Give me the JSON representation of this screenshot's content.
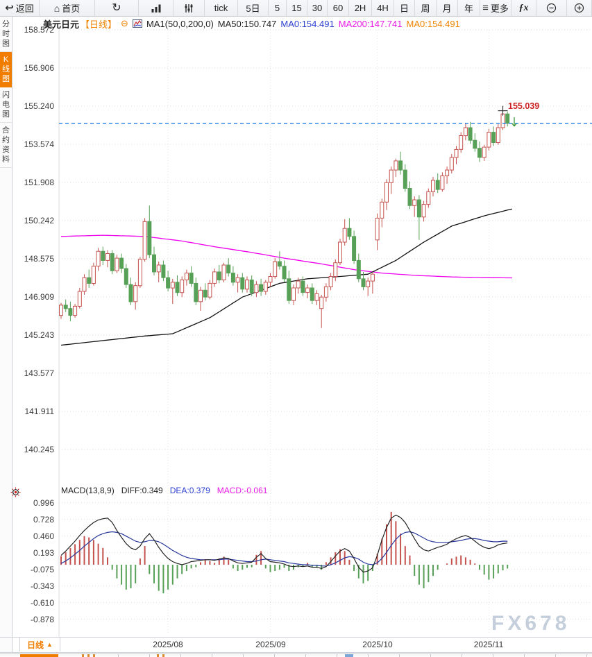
{
  "toolbar": {
    "items": [
      {
        "name": "back",
        "label": "返回",
        "icon": "back-arrow"
      },
      {
        "name": "home",
        "label": "首页",
        "icon": "home"
      },
      {
        "name": "refresh",
        "label": "",
        "icon": "refresh"
      },
      {
        "name": "chart-style",
        "label": "",
        "icon": "bar-chart"
      },
      {
        "name": "indicators",
        "label": "",
        "icon": "sliders"
      },
      {
        "name": "tick",
        "label": "tick",
        "icon": ""
      },
      {
        "name": "5d",
        "label": "5日",
        "icon": ""
      },
      {
        "name": "5m",
        "label": "5",
        "icon": ""
      },
      {
        "name": "15m",
        "label": "15",
        "icon": ""
      },
      {
        "name": "30m",
        "label": "30",
        "icon": ""
      },
      {
        "name": "60m",
        "label": "60",
        "icon": ""
      },
      {
        "name": "2h",
        "label": "2H",
        "icon": ""
      },
      {
        "name": "4h",
        "label": "4H",
        "icon": ""
      },
      {
        "name": "day",
        "label": "日",
        "icon": ""
      },
      {
        "name": "week",
        "label": "周",
        "icon": ""
      },
      {
        "name": "month",
        "label": "月",
        "icon": ""
      },
      {
        "name": "year",
        "label": "年",
        "icon": ""
      },
      {
        "name": "more",
        "label": "更多",
        "icon": "menu"
      },
      {
        "name": "fx",
        "label": "",
        "icon": "fx"
      },
      {
        "name": "zoom-out",
        "label": "",
        "icon": "zoom-out"
      },
      {
        "name": "zoom-in",
        "label": "",
        "icon": "zoom-in"
      }
    ]
  },
  "sidebar": {
    "items": [
      {
        "name": "timeline-chart",
        "label": "分时图",
        "active": false
      },
      {
        "name": "kline-chart",
        "label": "K线图",
        "active": true
      },
      {
        "name": "lightning-chart",
        "label": "闪电图",
        "active": false
      },
      {
        "name": "contract-info",
        "label": "合约资料",
        "active": false
      }
    ]
  },
  "header": {
    "symbol": "美元日元",
    "period_tag": "【日线】",
    "ma_settings": "MA1(50,0,200,0)",
    "ma50": "MA50:150.747",
    "ma0_blue": "MA0:154.491",
    "ma200": "MA200:147.741",
    "ma0_orange": "MA0:154.491"
  },
  "macd_header": {
    "title": "MACD(13,8,9)",
    "diff": "DIFF:0.349",
    "dea": "DEA:0.379",
    "macd": "MACD:-0.061"
  },
  "price_axis": [
    "158.572",
    "156.906",
    "155.240",
    "153.574",
    "151.908",
    "150.242",
    "148.575",
    "146.909",
    "145.243",
    "143.577",
    "141.911",
    "140.245"
  ],
  "macd_axis": [
    "0.996",
    "0.728",
    "0.460",
    "0.193",
    "-0.075",
    "-0.343",
    "-0.610",
    "-0.878"
  ],
  "x_axis": [
    "2025/08",
    "2025/09",
    "2025/10",
    "2025/11"
  ],
  "annotations": {
    "high_label": "155.039",
    "high_price": 155.039,
    "high_index": 95,
    "current_price": 154.491
  },
  "bottom_bar": {
    "period_label": "日线",
    "arrow": "▲"
  },
  "watermark": "FX678",
  "colors": {
    "up": "#c4514d",
    "down": "#57a057",
    "ma50": "#111111",
    "ma200": "#ee00ee",
    "diff": "#222222",
    "dea": "#26369b",
    "current_line": "#1f7fe8",
    "accent_orange": "#f08300",
    "high_label": "#cc2222",
    "grid": "#d8d8d8",
    "axis_text": "#3c3c3c",
    "watermark": "#c5cfdc"
  },
  "chart_data": {
    "type": "candlestick+macd",
    "symbol": "美元日元 (USD/JPY)",
    "interval": "日线 (daily)",
    "price_axis_ticks": [
      158.572,
      156.906,
      155.24,
      153.574,
      151.908,
      150.242,
      148.575,
      146.909,
      145.243,
      143.577,
      141.911,
      140.245
    ],
    "macd_axis_ticks": [
      0.996,
      0.728,
      0.46,
      0.193,
      -0.075,
      -0.343,
      -0.61,
      -0.878
    ],
    "month_boundaries": {
      "2025/08": 23,
      "2025/09": 45,
      "2025/10": 68,
      "2025/11": 92
    },
    "current_price": 154.491,
    "high_marker": {
      "index": 95,
      "price": 155.039
    },
    "ma50_label_value": 150.747,
    "ma200_label_value": 147.741,
    "candles": [
      [
        146.1,
        146.65,
        145.95,
        146.55
      ],
      [
        146.55,
        146.8,
        146.25,
        146.4
      ],
      [
        146.4,
        146.7,
        145.85,
        146.1
      ],
      [
        146.1,
        146.6,
        146.0,
        146.5
      ],
      [
        146.5,
        147.3,
        146.4,
        147.15
      ],
      [
        147.15,
        147.9,
        147.0,
        147.75
      ],
      [
        147.75,
        148.1,
        147.3,
        147.5
      ],
      [
        147.5,
        148.4,
        147.4,
        148.25
      ],
      [
        148.25,
        149.05,
        148.05,
        148.9
      ],
      [
        148.9,
        149.1,
        148.3,
        148.5
      ],
      [
        148.5,
        148.95,
        148.2,
        148.8
      ],
      [
        148.8,
        148.95,
        147.9,
        148.05
      ],
      [
        148.05,
        148.75,
        147.95,
        148.6
      ],
      [
        148.6,
        148.8,
        147.95,
        148.15
      ],
      [
        148.15,
        148.35,
        147.3,
        147.45
      ],
      [
        147.45,
        147.75,
        146.55,
        146.7
      ],
      [
        146.7,
        147.55,
        146.35,
        147.4
      ],
      [
        147.4,
        148.65,
        147.3,
        148.55
      ],
      [
        148.55,
        150.35,
        148.45,
        150.2
      ],
      [
        150.2,
        150.9,
        148.6,
        148.75
      ],
      [
        148.75,
        149.1,
        147.85,
        148.0
      ],
      [
        148.0,
        148.45,
        147.55,
        148.3
      ],
      [
        148.3,
        148.5,
        147.6,
        147.75
      ],
      [
        147.75,
        148.05,
        147.15,
        147.3
      ],
      [
        147.3,
        147.7,
        146.6,
        147.55
      ],
      [
        147.55,
        147.85,
        146.95,
        147.1
      ],
      [
        147.1,
        147.8,
        146.9,
        147.65
      ],
      [
        147.65,
        148.1,
        147.4,
        147.95
      ],
      [
        147.95,
        148.25,
        147.35,
        147.5
      ],
      [
        147.5,
        147.75,
        146.55,
        146.7
      ],
      [
        146.7,
        147.35,
        146.3,
        147.2
      ],
      [
        147.2,
        147.5,
        146.75,
        146.9
      ],
      [
        146.9,
        147.65,
        146.8,
        147.5
      ],
      [
        147.5,
        148.15,
        147.35,
        148.0
      ],
      [
        148.0,
        148.3,
        147.5,
        147.65
      ],
      [
        147.65,
        148.4,
        147.55,
        148.3
      ],
      [
        148.3,
        148.6,
        147.8,
        147.95
      ],
      [
        147.95,
        148.25,
        147.4,
        147.55
      ],
      [
        147.55,
        147.9,
        147.1,
        147.75
      ],
      [
        147.75,
        147.95,
        147.1,
        147.25
      ],
      [
        147.25,
        147.8,
        147.1,
        147.65
      ],
      [
        147.65,
        147.85,
        146.95,
        147.1
      ],
      [
        147.1,
        147.6,
        146.9,
        147.45
      ],
      [
        147.45,
        147.7,
        146.95,
        147.15
      ],
      [
        147.15,
        147.65,
        147.0,
        147.55
      ],
      [
        147.55,
        147.95,
        147.35,
        147.8
      ],
      [
        147.8,
        148.6,
        147.7,
        148.45
      ],
      [
        148.45,
        148.9,
        148.1,
        148.25
      ],
      [
        148.25,
        148.5,
        147.55,
        147.7
      ],
      [
        147.7,
        148.05,
        146.6,
        146.75
      ],
      [
        146.75,
        147.45,
        146.55,
        147.3
      ],
      [
        147.3,
        147.75,
        147.05,
        147.6
      ],
      [
        147.6,
        147.8,
        146.95,
        147.1
      ],
      [
        147.1,
        147.45,
        146.85,
        147.3
      ],
      [
        147.3,
        147.5,
        146.6,
        146.75
      ],
      [
        146.75,
        147.2,
        146.55,
        147.05
      ],
      [
        146.4,
        147.0,
        145.55,
        146.9
      ],
      [
        146.9,
        147.5,
        146.7,
        147.35
      ],
      [
        147.35,
        147.95,
        147.2,
        147.8
      ],
      [
        147.8,
        148.55,
        147.6,
        148.4
      ],
      [
        148.4,
        149.45,
        148.3,
        149.3
      ],
      [
        149.3,
        150.3,
        149.15,
        149.9
      ],
      [
        149.9,
        150.35,
        149.4,
        149.55
      ],
      [
        149.55,
        149.8,
        148.35,
        148.5
      ],
      [
        148.5,
        148.8,
        147.55,
        147.7
      ],
      [
        147.7,
        148.0,
        147.2,
        147.35
      ],
      [
        147.35,
        147.75,
        146.95,
        147.6
      ],
      [
        147.6,
        147.95,
        147.05,
        147.9
      ],
      [
        149.4,
        150.55,
        148.95,
        150.35
      ],
      [
        150.35,
        151.2,
        149.95,
        151.05
      ],
      [
        151.05,
        152.05,
        150.7,
        151.9
      ],
      [
        151.9,
        152.6,
        151.4,
        152.45
      ],
      [
        152.45,
        152.95,
        152.15,
        152.85
      ],
      [
        152.85,
        153.25,
        152.25,
        152.45
      ],
      [
        152.45,
        152.7,
        151.5,
        151.65
      ],
      [
        151.65,
        151.95,
        150.75,
        150.9
      ],
      [
        150.9,
        151.3,
        150.4,
        151.15
      ],
      [
        151.15,
        151.35,
        149.4,
        150.4
      ],
      [
        150.4,
        151.1,
        150.2,
        150.95
      ],
      [
        150.95,
        151.65,
        150.8,
        151.5
      ],
      [
        151.5,
        152.15,
        151.3,
        152.0
      ],
      [
        152.0,
        152.3,
        151.45,
        151.6
      ],
      [
        151.6,
        152.35,
        151.5,
        152.2
      ],
      [
        152.2,
        152.6,
        151.85,
        152.45
      ],
      [
        152.45,
        153.15,
        152.3,
        153.0
      ],
      [
        153.0,
        153.5,
        152.7,
        153.35
      ],
      [
        153.35,
        154.1,
        153.2,
        153.95
      ],
      [
        153.95,
        154.5,
        153.75,
        154.3
      ],
      [
        154.3,
        154.55,
        153.6,
        153.75
      ],
      [
        153.75,
        154.05,
        153.25,
        153.4
      ],
      [
        153.4,
        153.7,
        152.8,
        153.0
      ],
      [
        153.0,
        153.55,
        152.85,
        153.45
      ],
      [
        153.45,
        154.25,
        153.3,
        154.1
      ],
      [
        154.1,
        154.35,
        153.5,
        153.65
      ],
      [
        153.65,
        154.45,
        153.55,
        154.3
      ],
      [
        154.3,
        155.039,
        154.2,
        154.9
      ],
      [
        154.9,
        155.0,
        154.35,
        154.491
      ]
    ],
    "ma50_keypoints": [
      [
        0,
        144.8
      ],
      [
        9,
        145.0
      ],
      [
        18,
        145.2
      ],
      [
        24,
        145.3
      ],
      [
        32,
        146.0
      ],
      [
        39,
        146.9
      ],
      [
        47,
        147.5
      ],
      [
        53,
        147.7
      ],
      [
        60,
        147.8
      ],
      [
        66,
        147.9
      ],
      [
        72,
        148.5
      ],
      [
        78,
        149.3
      ],
      [
        84,
        150.0
      ],
      [
        91,
        150.45
      ],
      [
        97,
        150.75
      ]
    ],
    "ma200_keypoints": [
      [
        0,
        149.55
      ],
      [
        9,
        149.6
      ],
      [
        18,
        149.55
      ],
      [
        26,
        149.35
      ],
      [
        33,
        149.1
      ],
      [
        41,
        148.85
      ],
      [
        48,
        148.6
      ],
      [
        56,
        148.35
      ],
      [
        63,
        148.1
      ],
      [
        69,
        147.95
      ],
      [
        76,
        147.85
      ],
      [
        84,
        147.78
      ],
      [
        91,
        147.75
      ],
      [
        97,
        147.74
      ]
    ],
    "macd": {
      "params": "(13,8,9)",
      "last": {
        "diff": 0.349,
        "dea": 0.379,
        "macd": -0.061
      },
      "hist": [
        0.14,
        0.2,
        0.27,
        0.33,
        0.4,
        0.46,
        0.44,
        0.4,
        0.34,
        0.27,
        0.12,
        -0.08,
        -0.22,
        -0.32,
        -0.4,
        -0.38,
        -0.3,
        0.1,
        0.3,
        -0.15,
        -0.3,
        -0.42,
        -0.46,
        -0.4,
        -0.32,
        -0.22,
        -0.15,
        -0.1,
        -0.06,
        -0.04,
        0.04,
        0.08,
        0.06,
        0.03,
        0.1,
        0.13,
        0.08,
        -0.06,
        -0.1,
        -0.08,
        -0.05,
        -0.04,
        0.16,
        0.22,
        -0.06,
        -0.12,
        -0.1,
        -0.08,
        -0.05,
        -0.1,
        -0.08,
        -0.04,
        -0.03,
        0.03,
        -0.04,
        -0.05,
        -0.08,
        0.04,
        0.12,
        0.2,
        0.25,
        0.22,
        0.08,
        -0.1,
        -0.22,
        -0.3,
        -0.26,
        -0.1,
        0.18,
        0.42,
        0.65,
        0.85,
        0.7,
        0.5,
        0.3,
        0.15,
        -0.18,
        -0.32,
        -0.38,
        -0.28,
        -0.18,
        -0.08,
        0.0,
        0.02,
        0.1,
        0.13,
        0.15,
        0.12,
        0.08,
        0.02,
        -0.08,
        -0.16,
        -0.24,
        -0.22,
        -0.14,
        -0.09,
        -0.061
      ],
      "diff": [
        0.15,
        0.22,
        0.3,
        0.38,
        0.47,
        0.55,
        0.62,
        0.68,
        0.72,
        0.74,
        0.75,
        0.68,
        0.55,
        0.44,
        0.34,
        0.27,
        0.24,
        0.3,
        0.42,
        0.5,
        0.4,
        0.28,
        0.18,
        0.1,
        0.05,
        0.02,
        0.0,
        0.02,
        0.05,
        0.06,
        0.07,
        0.08,
        0.08,
        0.07,
        0.09,
        0.11,
        0.1,
        0.06,
        0.03,
        0.02,
        0.03,
        0.04,
        0.12,
        0.18,
        0.1,
        0.05,
        0.04,
        0.03,
        0.01,
        -0.02,
        -0.03,
        -0.02,
        -0.03,
        -0.02,
        -0.04,
        -0.04,
        -0.06,
        -0.03,
        0.05,
        0.14,
        0.22,
        0.26,
        0.22,
        0.1,
        -0.04,
        -0.12,
        -0.1,
        -0.05,
        0.15,
        0.4,
        0.6,
        0.75,
        0.8,
        0.76,
        0.68,
        0.55,
        0.42,
        0.3,
        0.24,
        0.22,
        0.25,
        0.28,
        0.3,
        0.33,
        0.38,
        0.42,
        0.45,
        0.47,
        0.44,
        0.38,
        0.32,
        0.28,
        0.26,
        0.28,
        0.32,
        0.34,
        0.349
      ],
      "dea": [
        0.02,
        0.06,
        0.11,
        0.17,
        0.23,
        0.3,
        0.36,
        0.42,
        0.47,
        0.5,
        0.52,
        0.53,
        0.52,
        0.5,
        0.46,
        0.42,
        0.38,
        0.36,
        0.37,
        0.39,
        0.39,
        0.37,
        0.33,
        0.28,
        0.23,
        0.19,
        0.15,
        0.12,
        0.1,
        0.09,
        0.08,
        0.08,
        0.08,
        0.08,
        0.08,
        0.09,
        0.09,
        0.08,
        0.07,
        0.06,
        0.05,
        0.05,
        0.06,
        0.08,
        0.09,
        0.08,
        0.07,
        0.06,
        0.05,
        0.03,
        0.02,
        0.01,
        0.0,
        0.0,
        -0.01,
        -0.01,
        -0.02,
        -0.02,
        0.0,
        0.03,
        0.07,
        0.11,
        0.13,
        0.12,
        0.09,
        0.04,
        0.01,
        0.0,
        0.03,
        0.1,
        0.2,
        0.31,
        0.41,
        0.48,
        0.52,
        0.53,
        0.51,
        0.47,
        0.43,
        0.39,
        0.37,
        0.36,
        0.36,
        0.36,
        0.37,
        0.38,
        0.39,
        0.41,
        0.42,
        0.42,
        0.41,
        0.39,
        0.38,
        0.37,
        0.37,
        0.38,
        0.379
      ]
    }
  }
}
